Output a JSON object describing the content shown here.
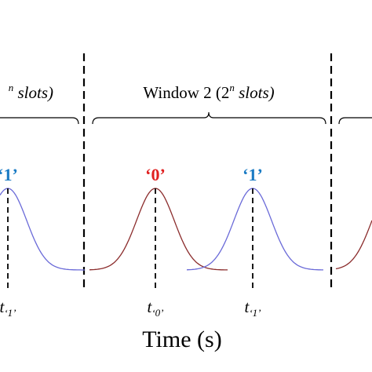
{
  "windows": [
    {
      "label": {
        "prefix": "",
        "sup": "n",
        "suffix": " slots)"
      }
    },
    {
      "label": {
        "prefix": "Window 2 (2",
        "sup": "n",
        "suffix": " slots)"
      }
    }
  ],
  "pulses": [
    {
      "label": "‘1’",
      "time": {
        "base": "t",
        "sub": "‘1’"
      }
    },
    {
      "label": "‘0’",
      "time": {
        "base": "t",
        "sub": "‘0’"
      }
    },
    {
      "label": "‘1’",
      "time": {
        "base": "t",
        "sub": "‘1’"
      }
    }
  ],
  "x_axis": {
    "label": "Time (s)"
  }
}
